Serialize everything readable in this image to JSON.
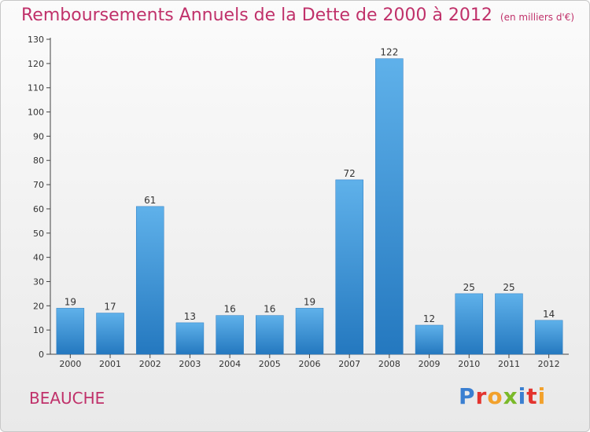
{
  "header": {
    "title": "Remboursements Annuels de la Dette de 2000 à 2012",
    "unit": "(en milliers d'€)"
  },
  "footer": {
    "commune": "BEAUCHE",
    "logo_letters": [
      "P",
      "r",
      "o",
      "x",
      "i",
      "t",
      "i"
    ],
    "logo_colors": [
      "#3a7fd1",
      "#e3342f",
      "#f2a12c",
      "#7ab929",
      "#3a7fd1",
      "#e3342f",
      "#f2a12c"
    ]
  },
  "colors": {
    "title": "#c0316a",
    "bar_top": "#5fb1ea",
    "bar_bottom": "#2478bf",
    "axis": "#444444"
  },
  "chart_data": {
    "type": "bar",
    "title": "Remboursements Annuels de la Dette de 2000 à 2012",
    "ylabel": "",
    "xlabel": "",
    "categories": [
      "2000",
      "2001",
      "2002",
      "2003",
      "2004",
      "2005",
      "2006",
      "2007",
      "2008",
      "2009",
      "2010",
      "2011",
      "2012"
    ],
    "values": [
      19,
      17,
      61,
      13,
      16,
      16,
      19,
      72,
      122,
      12,
      25,
      25,
      14
    ],
    "ylim": [
      0,
      130
    ],
    "yticks": [
      0,
      10,
      20,
      30,
      40,
      50,
      60,
      70,
      80,
      90,
      100,
      110,
      120,
      130
    ],
    "grid": false,
    "legend": "none"
  }
}
